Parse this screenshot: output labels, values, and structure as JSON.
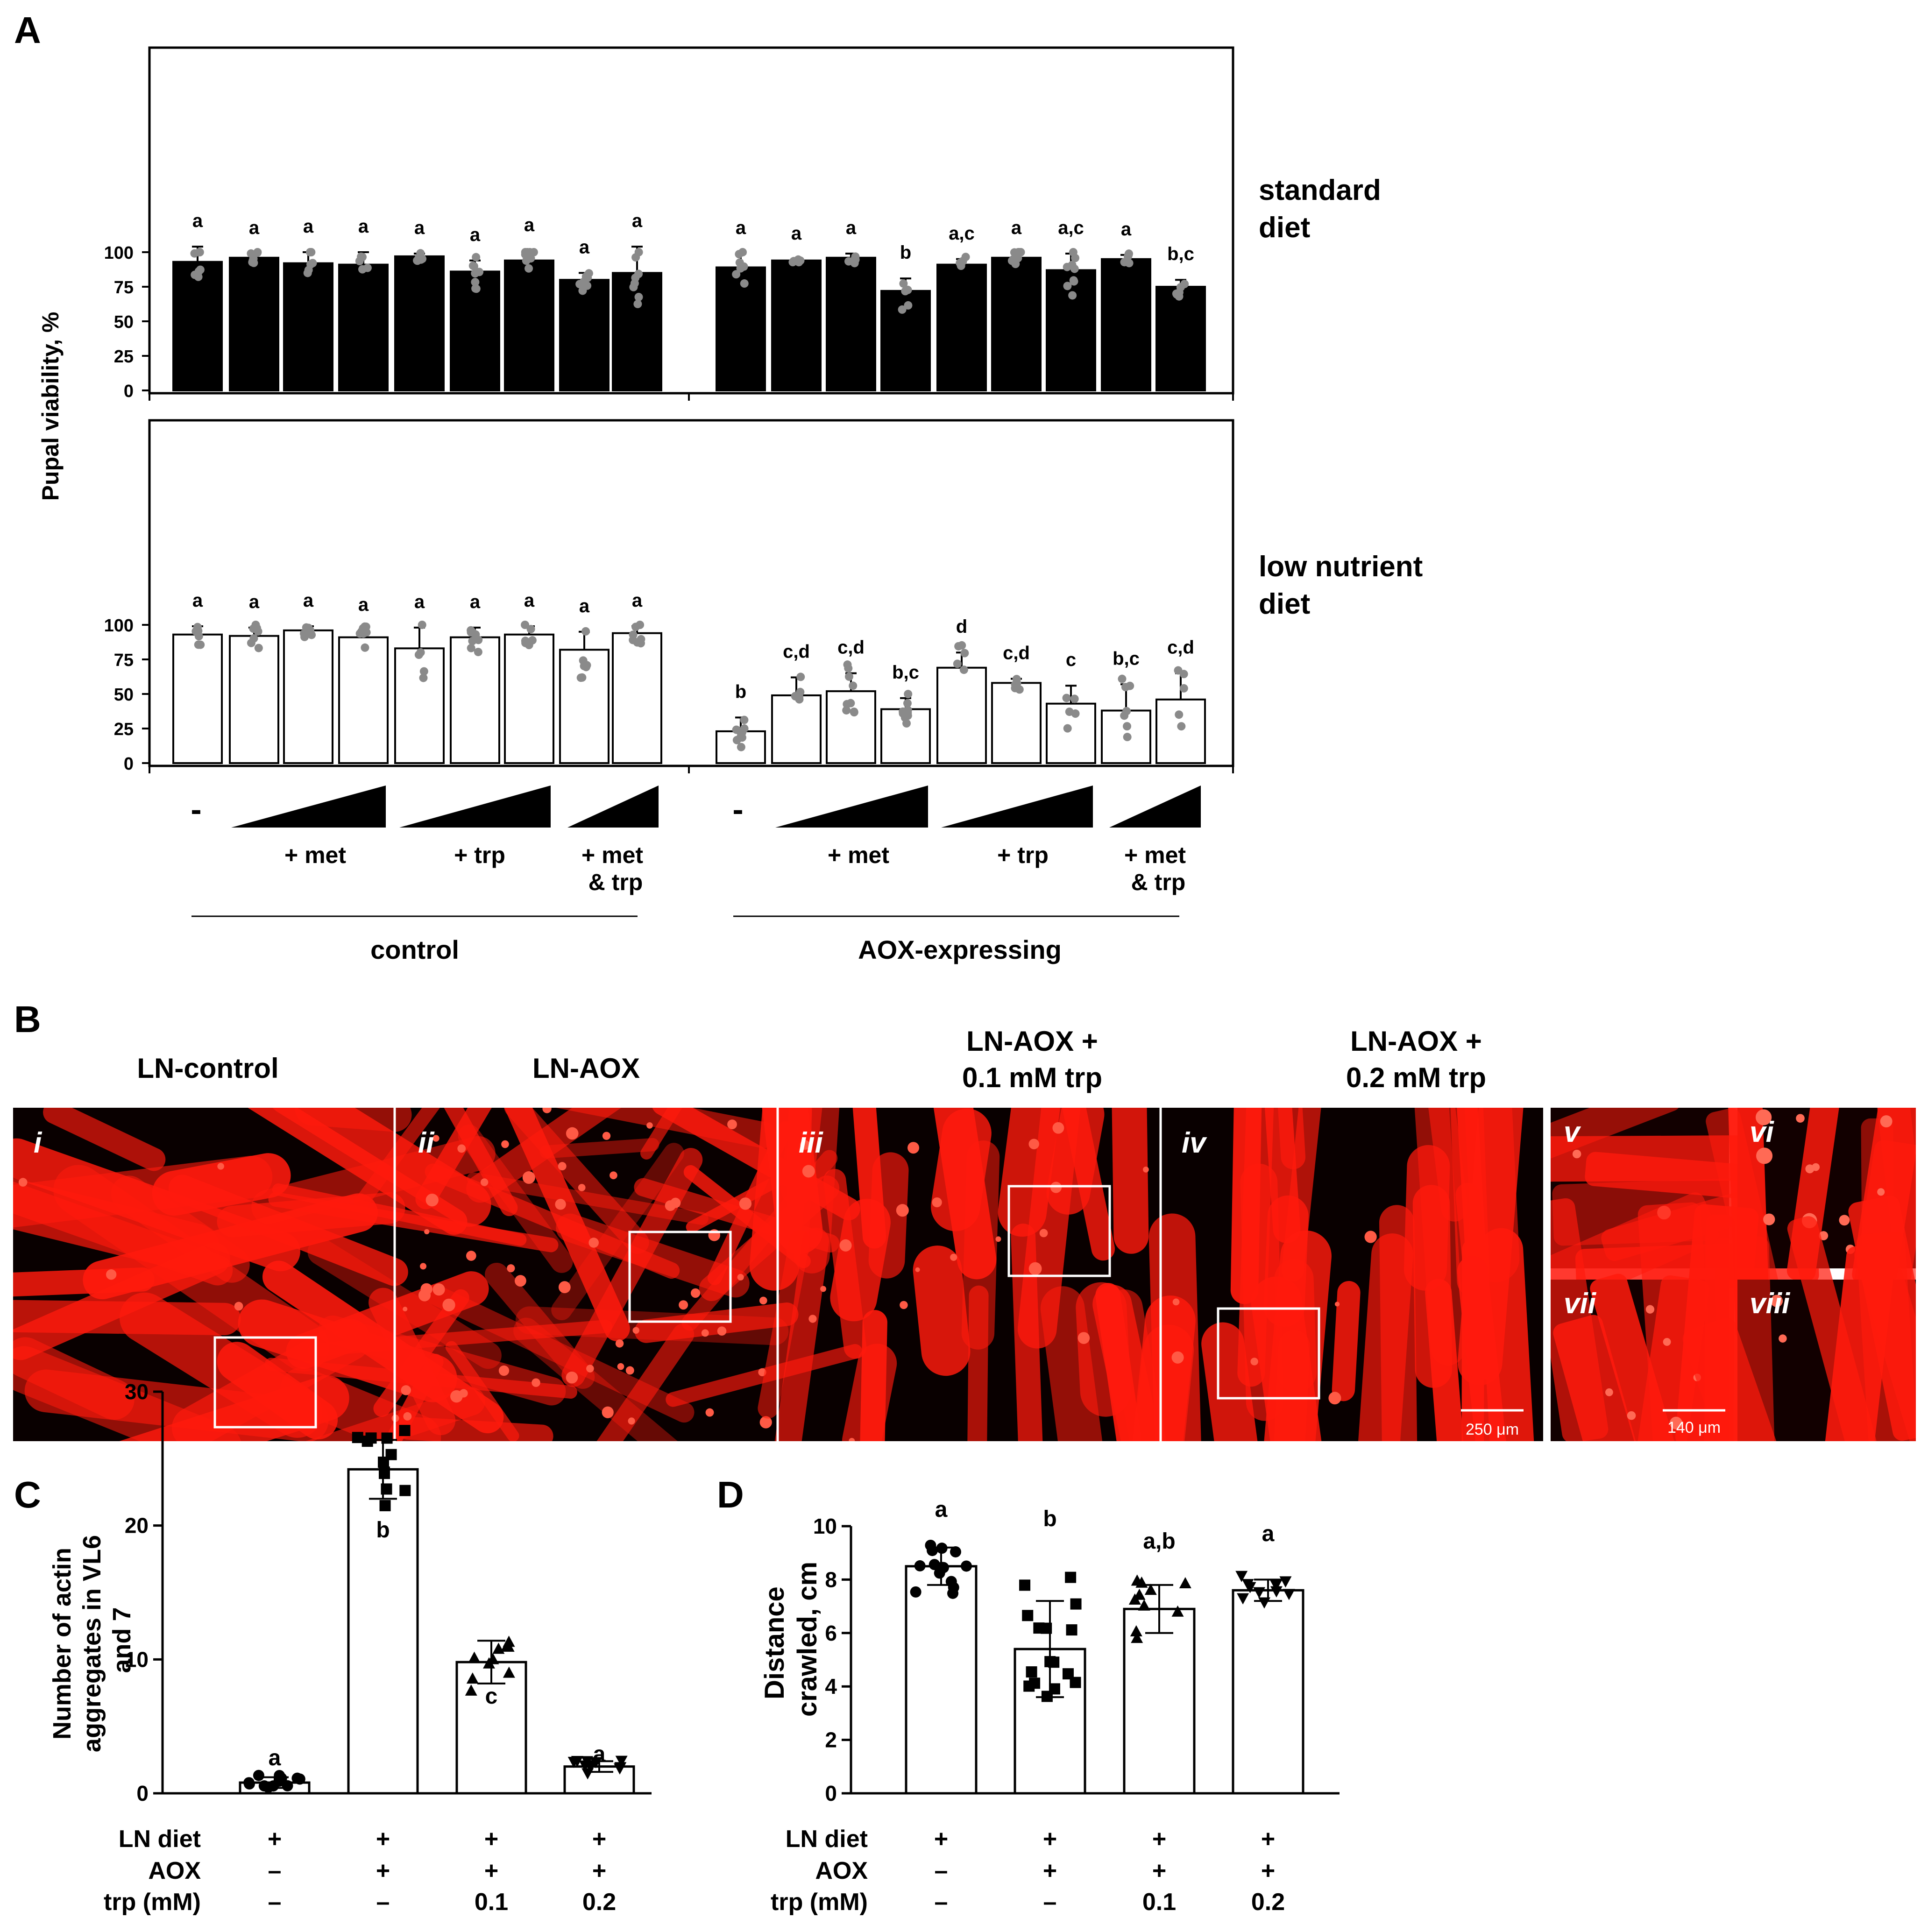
{
  "panel_letters": {
    "a": "A",
    "b": "B",
    "c": "C",
    "d": "D"
  },
  "panel_a": {
    "ylabel": "Pupal viability, %",
    "yticks": [
      0,
      25,
      50,
      75,
      100
    ],
    "row_labels": {
      "standard": [
        "standard",
        "diet"
      ],
      "low": [
        "low nutrient",
        "diet"
      ]
    },
    "dash": "-",
    "treatments": {
      "met": "+ met",
      "trp": "+ trp",
      "mettrp": [
        "+ met",
        "& trp"
      ]
    },
    "groups": {
      "control": "control",
      "aox": "AOX-expressing"
    }
  },
  "panel_b": {
    "titles": [
      "LN-control",
      "LN-AOX",
      "LN-AOX +\n0.1 mM trp",
      "LN-AOX +\n0.2 mM trp"
    ],
    "roman": [
      "i",
      "ii",
      "iii",
      "iv",
      "v",
      "vi",
      "vii",
      "viii"
    ],
    "scalebar_main": "250 μm",
    "scalebar_inset": "140 μm",
    "muscle_color": "#ff1a0d"
  },
  "panel_c": {
    "ylabel": [
      "Number of actin",
      "aggregates in VL6",
      "and 7"
    ],
    "yticks": [
      0,
      10,
      20,
      30
    ],
    "letters": [
      "a",
      "b",
      "c",
      "a"
    ]
  },
  "panel_d": {
    "ylabel": [
      "Distance",
      "crawled, cm"
    ],
    "yticks": [
      0,
      2,
      4,
      6,
      8,
      10
    ],
    "letters": [
      "a",
      "b",
      "a,b",
      "a"
    ]
  },
  "condition_table": {
    "row_labels": [
      "LN diet",
      "AOX",
      "trp (mM)"
    ],
    "rows": [
      [
        "+",
        "+",
        "+",
        "+"
      ],
      [
        "–",
        "+",
        "+",
        "+"
      ],
      [
        "–",
        "–",
        "0.1",
        "0.2"
      ]
    ]
  },
  "chart_data": [
    {
      "id": "A-standard",
      "type": "bar",
      "title": "standard diet",
      "ylabel": "Pupal viability, %",
      "ylim": [
        0,
        125
      ],
      "groups": [
        "control",
        "AOX-expressing"
      ],
      "categories": [
        "-",
        "+ met (low)",
        "+ met (mid)",
        "+ met (high)",
        "+ trp (low)",
        "+ trp (mid)",
        "+ trp (high)",
        "+ met & trp (low)",
        "+ met & trp (high)"
      ],
      "series": [
        {
          "name": "control",
          "values": [
            93,
            96,
            92,
            91,
            97,
            86,
            94,
            80,
            85
          ],
          "err": [
            11,
            3,
            8,
            9,
            2,
            8,
            7,
            5,
            19
          ],
          "letters": [
            "a",
            "a",
            "a",
            "a",
            "a",
            "a",
            "a",
            "a",
            "a"
          ]
        },
        {
          "name": "AOX-expressing",
          "values": [
            89,
            94,
            96,
            72,
            91,
            96,
            87,
            95,
            75
          ],
          "err": [
            10,
            1,
            3,
            9,
            4,
            3,
            12,
            3,
            5
          ],
          "letters": [
            "a",
            "a",
            "a",
            "b",
            "a,c",
            "a",
            "a,c",
            "a",
            "b,c"
          ]
        }
      ]
    },
    {
      "id": "A-low-nutrient",
      "type": "bar",
      "title": "low nutrient diet",
      "ylabel": "Pupal viability, %",
      "ylim": [
        0,
        125
      ],
      "groups": [
        "control",
        "AOX-expressing"
      ],
      "categories": [
        "-",
        "+ met (low)",
        "+ met (mid)",
        "+ met (high)",
        "+ trp (low)",
        "+ trp (mid)",
        "+ trp (high)",
        "+ met & trp (low)",
        "+ met & trp (high)"
      ],
      "series": [
        {
          "name": "control",
          "values": [
            93,
            92,
            96,
            91,
            83,
            91,
            93,
            82,
            94
          ],
          "err": [
            6,
            6,
            3,
            5,
            15,
            7,
            6,
            13,
            5
          ],
          "letters": [
            "a",
            "a",
            "a",
            "a",
            "a",
            "a",
            "a",
            "a",
            "a"
          ]
        },
        {
          "name": "AOX-expressing",
          "values": [
            23,
            49,
            52,
            39,
            69,
            58,
            43,
            38,
            46
          ],
          "err": [
            10,
            13,
            13,
            8,
            11,
            3,
            13,
            19,
            19
          ],
          "letters": [
            "b",
            "c,d",
            "c,d",
            "b,c",
            "d",
            "c,d",
            "c",
            "b,c",
            "c,d"
          ]
        }
      ]
    },
    {
      "id": "C",
      "type": "bar",
      "ylabel": "Number of actin aggregates in VL6 and 7",
      "ylim": [
        0,
        30
      ],
      "categories": [
        "LN diet + / AOX – / trp –",
        "LN diet + / AOX + / trp –",
        "LN diet + / AOX + / trp 0.1",
        "LN diet + / AOX + / trp 0.2"
      ],
      "values": [
        0.8,
        24.2,
        9.8,
        2.0
      ],
      "err": [
        0.4,
        2.2,
        1.6,
        0.4
      ],
      "letters": [
        "a",
        "b",
        "c",
        "a"
      ]
    },
    {
      "id": "D",
      "type": "bar",
      "ylabel": "Distance crawled, cm",
      "ylim": [
        0,
        10
      ],
      "categories": [
        "LN diet + / AOX – / trp –",
        "LN diet + / AOX + / trp –",
        "LN diet + / AOX + / trp 0.1",
        "LN diet + / AOX + / trp 0.2"
      ],
      "values": [
        8.5,
        5.4,
        6.9,
        7.6
      ],
      "err": [
        0.7,
        1.8,
        0.9,
        0.4
      ],
      "letters": [
        "a",
        "b",
        "a,b",
        "a"
      ]
    }
  ]
}
